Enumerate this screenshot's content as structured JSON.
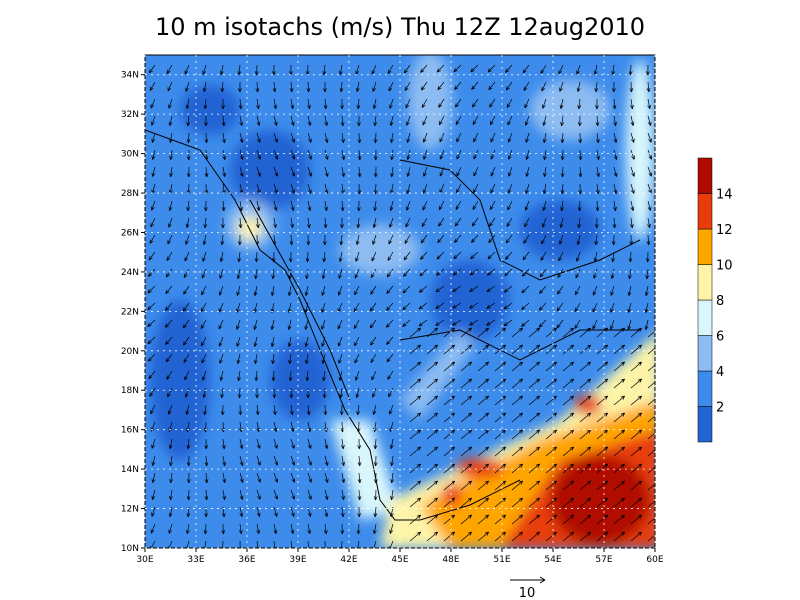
{
  "chart_data": {
    "type": "contour-map",
    "title": "10 m isotachs (m/s) Thu 12Z 12aug2010",
    "xlim": [
      30,
      60
    ],
    "ylim": [
      10,
      35
    ],
    "xticks": [
      {
        "value": 30,
        "label": "30E"
      },
      {
        "value": 33,
        "label": "33E"
      },
      {
        "value": 36,
        "label": "36E"
      },
      {
        "value": 39,
        "label": "39E"
      },
      {
        "value": 42,
        "label": "42E"
      },
      {
        "value": 45,
        "label": "45E"
      },
      {
        "value": 48,
        "label": "48E"
      },
      {
        "value": 51,
        "label": "51E"
      },
      {
        "value": 54,
        "label": "54E"
      },
      {
        "value": 57,
        "label": "57E"
      },
      {
        "value": 60,
        "label": "60E"
      }
    ],
    "yticks": [
      {
        "value": 10,
        "label": "10N"
      },
      {
        "value": 12,
        "label": "12N"
      },
      {
        "value": 14,
        "label": "14N"
      },
      {
        "value": 16,
        "label": "16N"
      },
      {
        "value": 18,
        "label": "18N"
      },
      {
        "value": 20,
        "label": "20N"
      },
      {
        "value": 22,
        "label": "22N"
      },
      {
        "value": 24,
        "label": "24N"
      },
      {
        "value": 26,
        "label": "26N"
      },
      {
        "value": 28,
        "label": "28N"
      },
      {
        "value": 30,
        "label": "30N"
      },
      {
        "value": 32,
        "label": "32N"
      },
      {
        "value": 34,
        "label": "34N"
      }
    ],
    "grid": true,
    "colorbar": {
      "levels": [
        2,
        4,
        6,
        8,
        10,
        12,
        14
      ],
      "colors": [
        "#2264d4",
        "#3d8cec",
        "#8cbcf2",
        "#d8f6fc",
        "#fdf4a8",
        "#ffa500",
        "#e83c0a",
        "#b00a00"
      ]
    },
    "vector_scale": 10
  }
}
